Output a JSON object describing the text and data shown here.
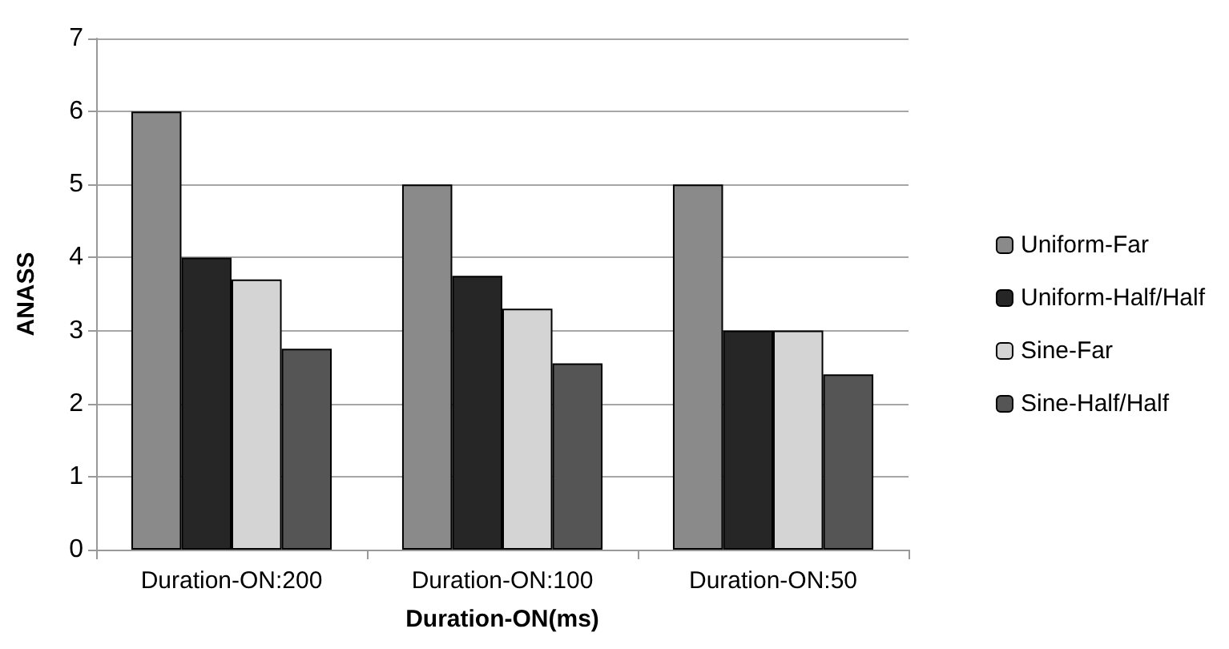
{
  "chart_data": {
    "type": "bar",
    "xlabel": "Duration-ON(ms)",
    "ylabel": "ANASS",
    "categories": [
      "Duration-ON:200",
      "Duration-ON:100",
      "Duration-ON:50"
    ],
    "series": [
      {
        "name": "Uniform-Far",
        "color": "#8a8a8a",
        "values": [
          6,
          5,
          5
        ]
      },
      {
        "name": "Uniform-Half/Half",
        "color": "#262626",
        "values": [
          4,
          3.75,
          3
        ]
      },
      {
        "name": "Sine-Far",
        "color": "#d4d4d4",
        "values": [
          3.7,
          3.3,
          3
        ]
      },
      {
        "name": "Sine-Half/Half",
        "color": "#555555",
        "values": [
          2.75,
          2.55,
          2.4
        ]
      }
    ],
    "ylim": [
      0,
      7
    ],
    "yticks": [
      0,
      1,
      2,
      3,
      4,
      5,
      6,
      7
    ],
    "grid": "y",
    "legend": "right"
  }
}
